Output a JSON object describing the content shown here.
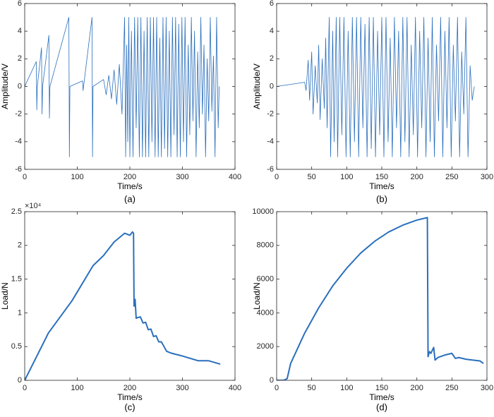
{
  "chart_data": [
    {
      "type": "line",
      "caption": "(a)",
      "x_label": "Time/s",
      "y_label": "Amplitude/V",
      "color": "#2a6fbd",
      "xlim": [
        0,
        400
      ],
      "xticks": [
        0,
        100,
        200,
        300,
        400
      ],
      "ylim": [
        -6,
        6
      ],
      "yticks": [
        -6,
        -4,
        -2,
        0,
        2,
        4,
        6
      ],
      "x": [
        0,
        22,
        23,
        24,
        32,
        33,
        34,
        46,
        47,
        48,
        84,
        85,
        86,
        110,
        111,
        128,
        129,
        130,
        150,
        155,
        160,
        165,
        170,
        175,
        180,
        185,
        190,
        192,
        194,
        196,
        198,
        200,
        203,
        206,
        209,
        212,
        215,
        218,
        221,
        224,
        227,
        230,
        233,
        236,
        239,
        242,
        245,
        248,
        251,
        254,
        257,
        260,
        263,
        266,
        269,
        272,
        275,
        278,
        281,
        284,
        287,
        290,
        293,
        296,
        299,
        302,
        305,
        308,
        311,
        314,
        317,
        320,
        323,
        326,
        329,
        332,
        335,
        338,
        341,
        344,
        347,
        350,
        353,
        356,
        359,
        362,
        365,
        368,
        370
      ],
      "values": [
        0,
        1.8,
        -1.7,
        0,
        2.8,
        -2,
        0,
        3.7,
        -2.3,
        0,
        5,
        -5.1,
        0,
        0.4,
        -0.3,
        5,
        -5.1,
        0,
        0.5,
        -0.6,
        0.8,
        -0.9,
        1.2,
        -1.3,
        1.6,
        -2,
        5,
        -5.1,
        3,
        -4,
        5,
        -5.1,
        4,
        -5.1,
        5,
        -3,
        5,
        -5.1,
        5,
        -5.1,
        4,
        -5.1,
        5,
        -5.1,
        5,
        -4,
        5,
        -5.1,
        5,
        -5.1,
        3.5,
        -5.1,
        5,
        -4.5,
        5,
        -5.1,
        4,
        -5.1,
        5,
        -3.5,
        5,
        -5.1,
        4.5,
        -5.1,
        5,
        -4,
        5,
        -5.1,
        3,
        -3.5,
        5,
        -2.5,
        4,
        -5.1,
        2.5,
        -3,
        5,
        -2,
        3,
        -5.1,
        2,
        -2.5,
        5,
        -1.8,
        2.2,
        -5.1,
        5,
        -3,
        0
      ]
    },
    {
      "type": "line",
      "caption": "(b)",
      "x_label": "Time/s",
      "y_label": "Amplitude/V",
      "color": "#2a6fbd",
      "xlim": [
        0,
        300
      ],
      "xticks": [
        0,
        50,
        100,
        150,
        200,
        250,
        300
      ],
      "ylim": [
        -6,
        6
      ],
      "yticks": [
        -6,
        -4,
        -2,
        0,
        2,
        4,
        6
      ],
      "x": [
        0,
        40,
        42,
        45,
        47,
        50,
        52,
        55,
        58,
        60,
        62,
        65,
        68,
        70,
        72,
        75,
        77,
        80,
        82,
        85,
        87,
        90,
        93,
        96,
        99,
        102,
        105,
        108,
        111,
        114,
        117,
        120,
        123,
        126,
        129,
        132,
        135,
        138,
        141,
        144,
        147,
        150,
        153,
        156,
        159,
        162,
        165,
        168,
        171,
        174,
        177,
        180,
        183,
        186,
        189,
        192,
        195,
        198,
        201,
        204,
        207,
        210,
        213,
        216,
        219,
        222,
        225,
        228,
        231,
        234,
        237,
        240,
        243,
        246,
        249,
        252,
        255,
        258,
        261,
        264,
        267,
        270,
        273,
        276,
        279,
        282
      ],
      "values": [
        0,
        0.3,
        -0.3,
        1.9,
        -1,
        2.5,
        -2,
        1.5,
        -1.2,
        3,
        -2.4,
        2,
        -1.6,
        3.5,
        -3,
        5,
        -5.1,
        4,
        -4,
        5,
        -5.1,
        5,
        -3.5,
        5,
        -5.1,
        4,
        -5.1,
        5,
        -4,
        5,
        -5.1,
        5,
        -3,
        4.5,
        -5.1,
        5,
        -4.5,
        5,
        -5.1,
        4,
        -3.5,
        5,
        -5.1,
        5,
        -4,
        3.5,
        -5.1,
        5,
        -3,
        4,
        -5.1,
        5,
        -4,
        5,
        -5.1,
        3,
        -3.5,
        5,
        -5.1,
        4,
        -3,
        5,
        -5.1,
        3.5,
        -4,
        5,
        -5.1,
        3,
        -2.5,
        5,
        -5.1,
        4,
        -3,
        5,
        -5.1,
        3,
        -2.5,
        5,
        -5.1,
        2.5,
        -2,
        5,
        -5.1,
        1.5,
        -1,
        0
      ]
    },
    {
      "type": "line",
      "caption": "(c)",
      "x_label": "Time/s",
      "y_label": "Load/N",
      "y_exponent": "×10⁴",
      "color": "#2a6fbd",
      "xlim": [
        0,
        400
      ],
      "xticks": [
        0,
        100,
        200,
        300,
        400
      ],
      "ylim": [
        0,
        25000
      ],
      "yticks": [
        0,
        {
          "value": 5000,
          "label": "0.5"
        },
        {
          "value": 10000,
          "label": "1"
        },
        {
          "value": 15000,
          "label": "1.5"
        },
        {
          "value": 20000,
          "label": "2"
        },
        {
          "value": 25000,
          "label": "2.5"
        }
      ],
      "x": [
        0,
        45,
        90,
        130,
        150,
        170,
        190,
        200,
        205,
        207,
        208,
        210,
        212,
        215,
        220,
        225,
        230,
        235,
        240,
        245,
        250,
        255,
        260,
        265,
        270,
        280,
        300,
        330,
        350,
        372
      ],
      "values": [
        0,
        7000,
        11800,
        17000,
        18500,
        20500,
        21800,
        21500,
        22000,
        21800,
        11000,
        12000,
        9200,
        9300,
        9400,
        8500,
        8600,
        7500,
        7600,
        6500,
        6600,
        5700,
        5700,
        5000,
        4300,
        4000,
        3600,
        2900,
        2900,
        2400
      ]
    },
    {
      "type": "line",
      "caption": "(d)",
      "x_label": "Time/s",
      "y_label": "Load/N",
      "color": "#2a6fbd",
      "xlim": [
        0,
        300
      ],
      "xticks": [
        0,
        50,
        100,
        150,
        200,
        250,
        300
      ],
      "ylim": [
        0,
        10000
      ],
      "yticks": [
        0,
        2000,
        4000,
        6000,
        8000,
        10000
      ],
      "x": [
        0,
        10,
        15,
        20,
        40,
        60,
        80,
        100,
        120,
        140,
        160,
        180,
        200,
        215,
        216,
        218,
        220,
        224,
        226,
        230,
        240,
        250,
        255,
        260,
        270,
        280,
        290,
        295
      ],
      "values": [
        0,
        0,
        100,
        1000,
        2800,
        4300,
        5600,
        6650,
        7550,
        8250,
        8800,
        9200,
        9500,
        9650,
        1400,
        1700,
        1600,
        1950,
        1200,
        1350,
        1500,
        1600,
        1300,
        1350,
        1250,
        1200,
        1150,
        1000
      ]
    }
  ]
}
